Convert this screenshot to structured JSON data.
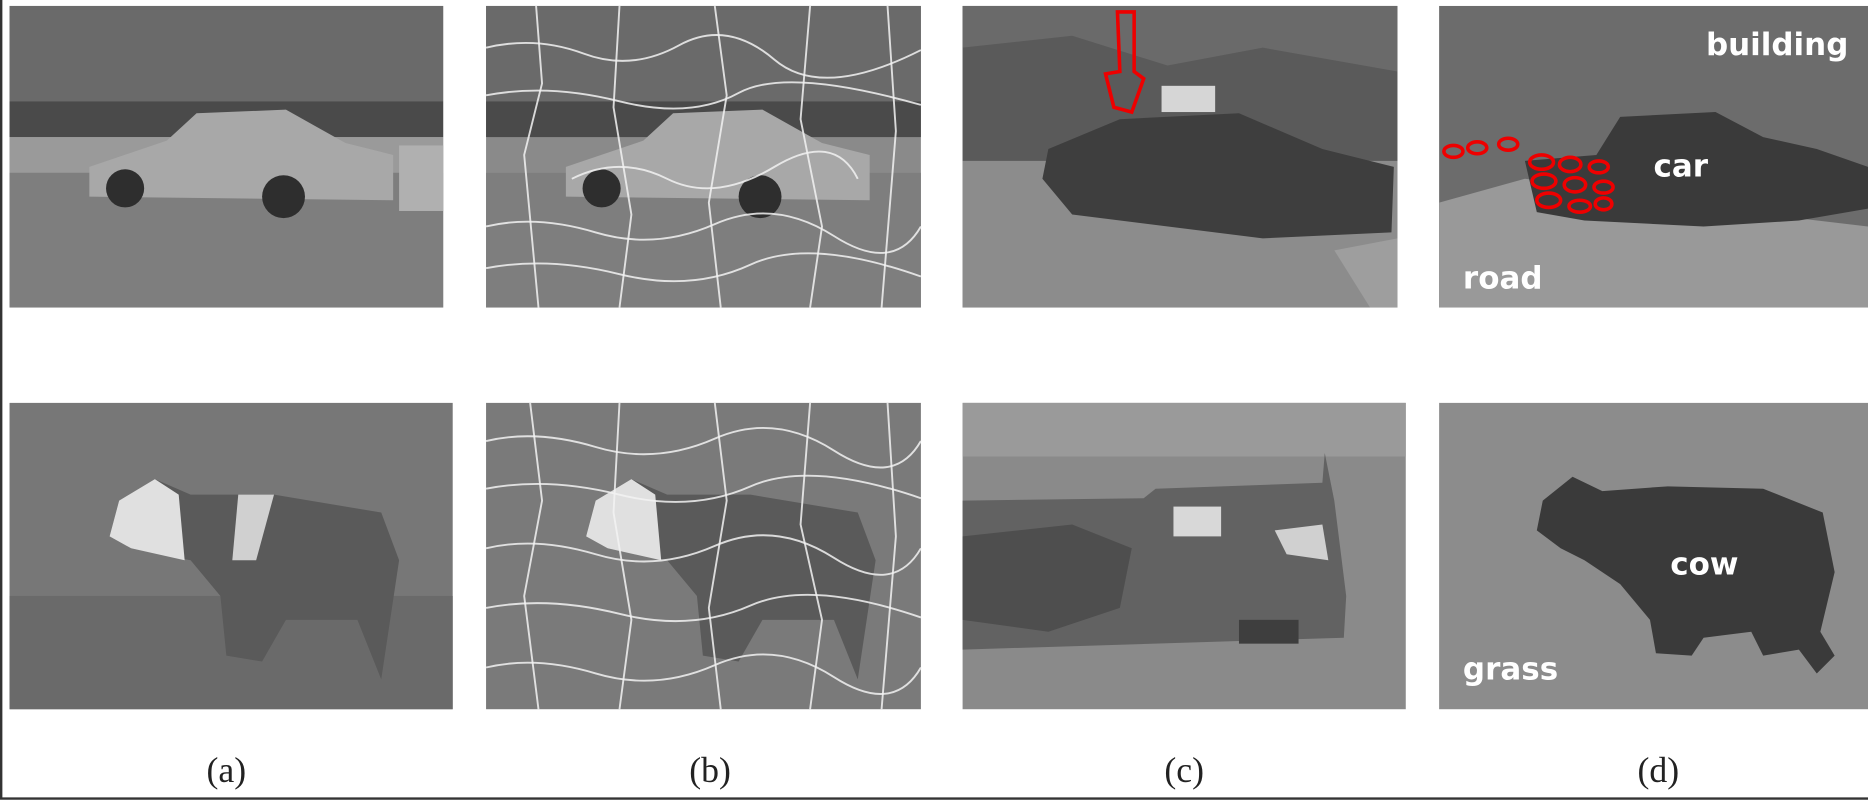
{
  "figure": {
    "captions": [
      "(a)",
      "(b)",
      "(c)",
      "(d)"
    ],
    "car_scene_labels": [
      "building",
      "car",
      "road"
    ],
    "cow_scene_labels": [
      "cow",
      "grass"
    ]
  }
}
